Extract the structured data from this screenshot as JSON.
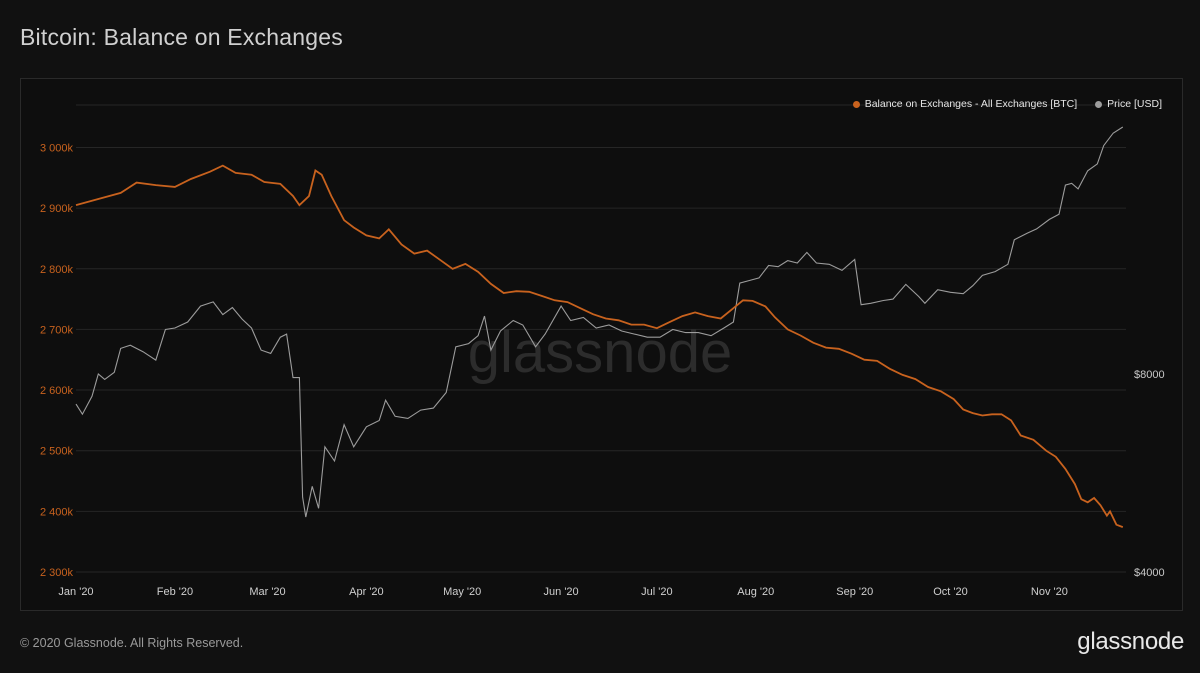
{
  "header": {
    "title": "Bitcoin: Balance on Exchanges"
  },
  "footer": {
    "copyright": "© 2020 Glassnode. All Rights Reserved.",
    "brand": "glassnode"
  },
  "watermark": "glassnode",
  "colors": {
    "balance": "#c8621e",
    "price": "#9c9c9c",
    "background": "#111111",
    "grid": "#262626",
    "left_tick": "#c8621e",
    "right_tick": "#c8c8c8",
    "x_tick": "#cfcfcf"
  },
  "chart_data": {
    "type": "line",
    "title": "Bitcoin: Balance on Exchanges",
    "x_ticks": [
      "Jan '20",
      "Feb '20",
      "Mar '20",
      "Apr '20",
      "May '20",
      "Jun '20",
      "Jul '20",
      "Aug '20",
      "Sep '20",
      "Oct '20",
      "Nov '20"
    ],
    "y_left": {
      "ticks": [
        "2 300k",
        "2 400k",
        "2 500k",
        "2 600k",
        "2 700k",
        "2 800k",
        "2 900k",
        "3 000k"
      ],
      "range": [
        2300000,
        3070000
      ],
      "unit": "BTC"
    },
    "y_right": {
      "ticks": [
        "$4000",
        "$8000"
      ],
      "scale": "log",
      "range": [
        4000,
        19000
      ],
      "unit": "USD"
    },
    "grid": true,
    "legend_position": "top-right",
    "series": [
      {
        "name": "Balance on Exchanges - All Exchanges [BTC]",
        "axis": "left",
        "points": [
          [
            "2020-01-01",
            2905000
          ],
          [
            "2020-01-08",
            2915000
          ],
          [
            "2020-01-15",
            2925000
          ],
          [
            "2020-01-20",
            2942000
          ],
          [
            "2020-01-26",
            2938000
          ],
          [
            "2020-02-01",
            2935000
          ],
          [
            "2020-02-06",
            2948000
          ],
          [
            "2020-02-12",
            2960000
          ],
          [
            "2020-02-16",
            2970000
          ],
          [
            "2020-02-20",
            2958000
          ],
          [
            "2020-02-25",
            2955000
          ],
          [
            "2020-02-29",
            2943000
          ],
          [
            "2020-03-05",
            2940000
          ],
          [
            "2020-03-09",
            2920000
          ],
          [
            "2020-03-11",
            2905000
          ],
          [
            "2020-03-14",
            2920000
          ],
          [
            "2020-03-16",
            2962000
          ],
          [
            "2020-03-18",
            2955000
          ],
          [
            "2020-03-21",
            2920000
          ],
          [
            "2020-03-25",
            2880000
          ],
          [
            "2020-03-28",
            2868000
          ],
          [
            "2020-04-01",
            2855000
          ],
          [
            "2020-04-05",
            2850000
          ],
          [
            "2020-04-08",
            2865000
          ],
          [
            "2020-04-12",
            2840000
          ],
          [
            "2020-04-16",
            2825000
          ],
          [
            "2020-04-20",
            2830000
          ],
          [
            "2020-04-24",
            2815000
          ],
          [
            "2020-04-28",
            2800000
          ],
          [
            "2020-05-02",
            2808000
          ],
          [
            "2020-05-06",
            2795000
          ],
          [
            "2020-05-10",
            2775000
          ],
          [
            "2020-05-14",
            2760000
          ],
          [
            "2020-05-18",
            2763000
          ],
          [
            "2020-05-22",
            2762000
          ],
          [
            "2020-05-26",
            2755000
          ],
          [
            "2020-05-30",
            2748000
          ],
          [
            "2020-06-03",
            2745000
          ],
          [
            "2020-06-07",
            2735000
          ],
          [
            "2020-06-11",
            2725000
          ],
          [
            "2020-06-15",
            2718000
          ],
          [
            "2020-06-19",
            2715000
          ],
          [
            "2020-06-23",
            2708000
          ],
          [
            "2020-06-27",
            2708000
          ],
          [
            "2020-07-01",
            2702000
          ],
          [
            "2020-07-05",
            2712000
          ],
          [
            "2020-07-09",
            2722000
          ],
          [
            "2020-07-13",
            2728000
          ],
          [
            "2020-07-17",
            2722000
          ],
          [
            "2020-07-21",
            2718000
          ],
          [
            "2020-07-25",
            2735000
          ],
          [
            "2020-07-28",
            2748000
          ],
          [
            "2020-07-31",
            2747000
          ],
          [
            "2020-08-04",
            2738000
          ],
          [
            "2020-08-07",
            2720000
          ],
          [
            "2020-08-11",
            2700000
          ],
          [
            "2020-08-15",
            2690000
          ],
          [
            "2020-08-19",
            2678000
          ],
          [
            "2020-08-23",
            2670000
          ],
          [
            "2020-08-27",
            2668000
          ],
          [
            "2020-08-31",
            2660000
          ],
          [
            "2020-09-04",
            2650000
          ],
          [
            "2020-09-08",
            2648000
          ],
          [
            "2020-09-12",
            2635000
          ],
          [
            "2020-09-16",
            2625000
          ],
          [
            "2020-09-20",
            2618000
          ],
          [
            "2020-09-24",
            2605000
          ],
          [
            "2020-09-28",
            2598000
          ],
          [
            "2020-10-02",
            2585000
          ],
          [
            "2020-10-05",
            2568000
          ],
          [
            "2020-10-08",
            2562000
          ],
          [
            "2020-10-11",
            2558000
          ],
          [
            "2020-10-14",
            2560000
          ],
          [
            "2020-10-17",
            2560000
          ],
          [
            "2020-10-20",
            2550000
          ],
          [
            "2020-10-23",
            2525000
          ],
          [
            "2020-10-27",
            2518000
          ],
          [
            "2020-10-31",
            2500000
          ],
          [
            "2020-11-03",
            2490000
          ],
          [
            "2020-11-06",
            2470000
          ],
          [
            "2020-11-09",
            2445000
          ],
          [
            "2020-11-11",
            2420000
          ],
          [
            "2020-11-13",
            2415000
          ],
          [
            "2020-11-15",
            2422000
          ],
          [
            "2020-11-17",
            2410000
          ],
          [
            "2020-11-19",
            2393000
          ],
          [
            "2020-11-20",
            2400000
          ],
          [
            "2020-11-22",
            2378000
          ],
          [
            "2020-11-24",
            2374000
          ]
        ]
      },
      {
        "name": "Price [USD]",
        "axis": "right",
        "points": [
          [
            "2020-01-01",
            7200
          ],
          [
            "2020-01-03",
            6950
          ],
          [
            "2020-01-06",
            7400
          ],
          [
            "2020-01-08",
            8000
          ],
          [
            "2020-01-10",
            7850
          ],
          [
            "2020-01-13",
            8050
          ],
          [
            "2020-01-15",
            8750
          ],
          [
            "2020-01-18",
            8850
          ],
          [
            "2020-01-22",
            8650
          ],
          [
            "2020-01-26",
            8400
          ],
          [
            "2020-01-29",
            9350
          ],
          [
            "2020-02-01",
            9400
          ],
          [
            "2020-02-05",
            9600
          ],
          [
            "2020-02-09",
            10150
          ],
          [
            "2020-02-13",
            10300
          ],
          [
            "2020-02-16",
            9850
          ],
          [
            "2020-02-19",
            10100
          ],
          [
            "2020-02-22",
            9700
          ],
          [
            "2020-02-25",
            9400
          ],
          [
            "2020-02-28",
            8700
          ],
          [
            "2020-03-02",
            8600
          ],
          [
            "2020-03-05",
            9100
          ],
          [
            "2020-03-07",
            9200
          ],
          [
            "2020-03-09",
            7900
          ],
          [
            "2020-03-11",
            7900
          ],
          [
            "2020-03-12",
            5200
          ],
          [
            "2020-03-13",
            4850
          ],
          [
            "2020-03-15",
            5400
          ],
          [
            "2020-03-17",
            5000
          ],
          [
            "2020-03-19",
            6200
          ],
          [
            "2020-03-22",
            5900
          ],
          [
            "2020-03-25",
            6700
          ],
          [
            "2020-03-28",
            6200
          ],
          [
            "2020-04-01",
            6650
          ],
          [
            "2020-04-05",
            6800
          ],
          [
            "2020-04-07",
            7300
          ],
          [
            "2020-04-10",
            6900
          ],
          [
            "2020-04-14",
            6850
          ],
          [
            "2020-04-18",
            7050
          ],
          [
            "2020-04-22",
            7100
          ],
          [
            "2020-04-26",
            7500
          ],
          [
            "2020-04-29",
            8800
          ],
          [
            "2020-05-03",
            8900
          ],
          [
            "2020-05-06",
            9150
          ],
          [
            "2020-05-08",
            9800
          ],
          [
            "2020-05-10",
            8700
          ],
          [
            "2020-05-13",
            9300
          ],
          [
            "2020-05-17",
            9650
          ],
          [
            "2020-05-20",
            9500
          ],
          [
            "2020-05-24",
            8800
          ],
          [
            "2020-05-27",
            9200
          ],
          [
            "2020-06-01",
            10150
          ],
          [
            "2020-06-04",
            9650
          ],
          [
            "2020-06-08",
            9750
          ],
          [
            "2020-06-12",
            9400
          ],
          [
            "2020-06-16",
            9500
          ],
          [
            "2020-06-20",
            9300
          ],
          [
            "2020-06-24",
            9200
          ],
          [
            "2020-06-28",
            9100
          ],
          [
            "2020-07-02",
            9100
          ],
          [
            "2020-07-06",
            9350
          ],
          [
            "2020-07-10",
            9250
          ],
          [
            "2020-07-14",
            9250
          ],
          [
            "2020-07-18",
            9150
          ],
          [
            "2020-07-22",
            9400
          ],
          [
            "2020-07-25",
            9600
          ],
          [
            "2020-07-27",
            11000
          ],
          [
            "2020-07-30",
            11100
          ],
          [
            "2020-08-02",
            11200
          ],
          [
            "2020-08-05",
            11700
          ],
          [
            "2020-08-08",
            11650
          ],
          [
            "2020-08-11",
            11900
          ],
          [
            "2020-08-14",
            11800
          ],
          [
            "2020-08-17",
            12250
          ],
          [
            "2020-08-20",
            11800
          ],
          [
            "2020-08-24",
            11750
          ],
          [
            "2020-08-28",
            11500
          ],
          [
            "2020-09-01",
            11950
          ],
          [
            "2020-09-03",
            10200
          ],
          [
            "2020-09-06",
            10250
          ],
          [
            "2020-09-10",
            10350
          ],
          [
            "2020-09-13",
            10400
          ],
          [
            "2020-09-17",
            10950
          ],
          [
            "2020-09-21",
            10500
          ],
          [
            "2020-09-23",
            10250
          ],
          [
            "2020-09-27",
            10750
          ],
          [
            "2020-10-01",
            10650
          ],
          [
            "2020-10-05",
            10600
          ],
          [
            "2020-10-08",
            10900
          ],
          [
            "2020-10-11",
            11300
          ],
          [
            "2020-10-15",
            11450
          ],
          [
            "2020-10-19",
            11750
          ],
          [
            "2020-10-21",
            12800
          ],
          [
            "2020-10-25",
            13100
          ],
          [
            "2020-10-28",
            13300
          ],
          [
            "2020-11-01",
            13750
          ],
          [
            "2020-11-04",
            14000
          ],
          [
            "2020-11-06",
            15500
          ],
          [
            "2020-11-08",
            15600
          ],
          [
            "2020-11-10",
            15300
          ],
          [
            "2020-11-13",
            16300
          ],
          [
            "2020-11-16",
            16700
          ],
          [
            "2020-11-18",
            17800
          ],
          [
            "2020-11-21",
            18600
          ],
          [
            "2020-11-24",
            19000
          ]
        ]
      }
    ]
  }
}
